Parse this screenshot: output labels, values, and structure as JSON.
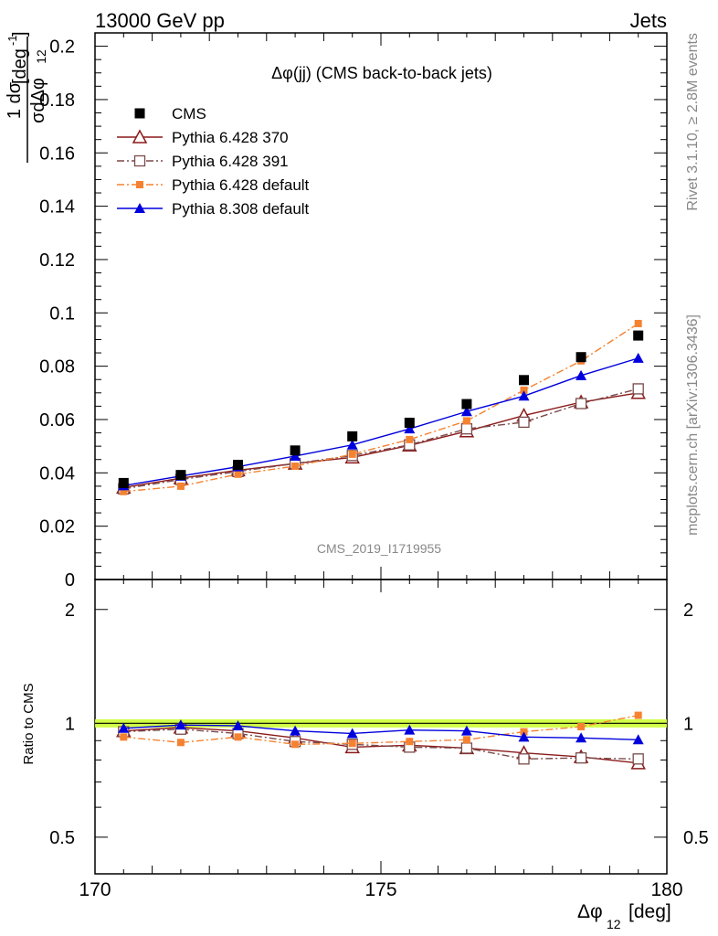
{
  "header": {
    "left": "13000 GeV pp",
    "right": "Jets"
  },
  "side": {
    "rivet": "Rivet 3.1.10, ≥ 2.8M events",
    "mcplots": "mcplots.cern.ch [arXiv:1306.3436]"
  },
  "chart_data": [
    {
      "type": "scatter",
      "title": "Δφ(jj) (CMS back-to-back jets)",
      "analysis": "CMS_2019_I1719955",
      "xlabel": "Δφ",
      "xlabel_sub": "12",
      "xlabel_unit": "[deg]",
      "ylabel": "1 dσ / σ dΔφ₁₂ [deg⁻¹]",
      "xlim": [
        170,
        180
      ],
      "ylim": [
        0,
        0.205
      ],
      "x_ticks": [
        "170",
        "175",
        "180"
      ],
      "y_ticks": [
        "0",
        "0.02",
        "0.04",
        "0.06",
        "0.08",
        "0.1",
        "0.12",
        "0.14",
        "0.16",
        "0.18",
        "0.2"
      ],
      "legend_position": "top-left",
      "x": [
        170.5,
        171.5,
        172.5,
        173.5,
        174.5,
        175.5,
        176.5,
        177.5,
        178.5,
        179.5
      ],
      "series": [
        {
          "name": "CMS",
          "color": "#000000",
          "marker": "filled-square",
          "line": "none",
          "values": [
            0.0362,
            0.0392,
            0.043,
            0.0484,
            0.0537,
            0.0588,
            0.0658,
            0.0748,
            0.0834,
            0.0915
          ]
        },
        {
          "name": "Pythia 6.428 370",
          "color": "#8b1a1a",
          "marker": "open-triangle",
          "line": "solid",
          "values": [
            0.0345,
            0.038,
            0.041,
            0.0435,
            0.0458,
            0.0503,
            0.0556,
            0.0615,
            0.0665,
            0.07
          ]
        },
        {
          "name": "Pythia 6.428 391",
          "color": "#7a4a4a",
          "marker": "open-square",
          "line": "dashdot",
          "values": [
            0.034,
            0.0375,
            0.0405,
            0.0435,
            0.0465,
            0.0505,
            0.0565,
            0.059,
            0.066,
            0.0715
          ]
        },
        {
          "name": "Pythia 6.428 default",
          "color": "#f58231",
          "marker": "small-filled-square",
          "line": "dashdot",
          "values": [
            0.033,
            0.035,
            0.0395,
            0.0425,
            0.047,
            0.0525,
            0.0595,
            0.071,
            0.082,
            0.096
          ]
        },
        {
          "name": "Pythia 8.308 default",
          "color": "#0000dd",
          "marker": "filled-triangle",
          "line": "solid",
          "values": [
            0.0352,
            0.0388,
            0.0423,
            0.0463,
            0.0505,
            0.0565,
            0.063,
            0.0688,
            0.0765,
            0.083
          ]
        }
      ]
    },
    {
      "type": "line",
      "ylabel": "Ratio to CMS",
      "xlim": [
        170,
        180
      ],
      "ylim": [
        0.4,
        2.4
      ],
      "log_scale_y": true,
      "y_ticks": [
        "0.5",
        "1",
        "2"
      ],
      "band": {
        "color": "#ccff33",
        "range": [
          0.975,
          1.025
        ]
      },
      "x": [
        170.5,
        171.5,
        172.5,
        173.5,
        174.5,
        175.5,
        176.5,
        177.5,
        178.5,
        179.5
      ],
      "series": [
        {
          "name": "Pythia 6.428 370",
          "color": "#8b1a1a",
          "marker": "open-triangle",
          "line": "solid",
          "values": [
            0.955,
            0.975,
            0.955,
            0.915,
            0.865,
            0.875,
            0.86,
            0.835,
            0.815,
            0.785
          ]
        },
        {
          "name": "Pythia 6.428 391",
          "color": "#7a4a4a",
          "marker": "open-square",
          "line": "dashdot",
          "values": [
            0.95,
            0.965,
            0.94,
            0.895,
            0.88,
            0.865,
            0.86,
            0.805,
            0.81,
            0.805
          ]
        },
        {
          "name": "Pythia 6.428 default",
          "color": "#f58231",
          "marker": "small-filled-square",
          "line": "dashdot",
          "values": [
            0.92,
            0.89,
            0.92,
            0.88,
            0.885,
            0.895,
            0.905,
            0.95,
            0.98,
            1.05
          ]
        },
        {
          "name": "Pythia 8.308 default",
          "color": "#0000dd",
          "marker": "filled-triangle",
          "line": "solid",
          "values": [
            0.97,
            0.99,
            0.985,
            0.955,
            0.94,
            0.96,
            0.955,
            0.92,
            0.915,
            0.905
          ]
        }
      ]
    }
  ]
}
